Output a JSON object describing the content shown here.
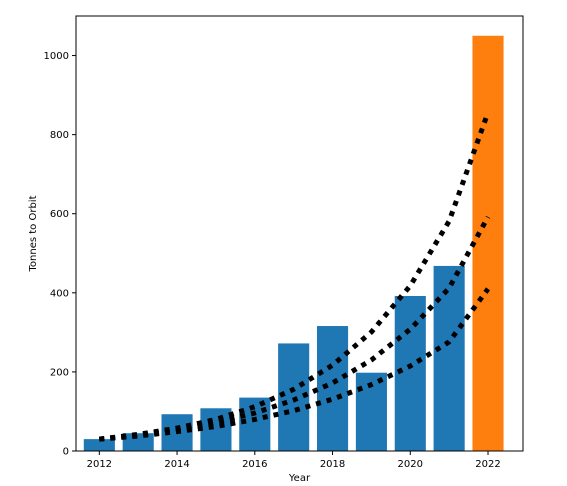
{
  "chart_data": {
    "type": "bar",
    "xlabel": "Year",
    "ylabel": "Tonnes to Orbit",
    "categories": [
      2012,
      2013,
      2014,
      2015,
      2016,
      2017,
      2018,
      2019,
      2020,
      2021,
      2022
    ],
    "values": [
      30,
      45,
      93,
      108,
      135,
      272,
      316,
      198,
      392,
      468,
      1050
    ],
    "bar_colors": [
      "#1f77b4",
      "#1f77b4",
      "#1f77b4",
      "#1f77b4",
      "#1f77b4",
      "#1f77b4",
      "#1f77b4",
      "#1f77b4",
      "#1f77b4",
      "#1f77b4",
      "#ff7f0e"
    ],
    "xlim": [
      2011.4,
      2022.9
    ],
    "ylim": [
      0,
      1100
    ],
    "x_ticks": [
      2012,
      2014,
      2016,
      2018,
      2020,
      2022
    ],
    "y_ticks": [
      0,
      200,
      400,
      600,
      800,
      1000
    ],
    "trend_lines": [
      {
        "style": "dotted",
        "color": "#000000",
        "x": [
          2012,
          2013,
          2014,
          2015,
          2016,
          2017,
          2018,
          2019,
          2020,
          2021,
          2022
        ],
        "y": [
          30,
          42,
          58,
          80,
          112,
          156,
          217,
          301,
          418,
          581,
          856
        ]
      },
      {
        "style": "dotted",
        "color": "#000000",
        "x": [
          2012,
          2013,
          2014,
          2015,
          2016,
          2017,
          2018,
          2019,
          2020,
          2021,
          2022
        ],
        "y": [
          30,
          40,
          54,
          72,
          96,
          129,
          172,
          230,
          308,
          412,
          592
        ]
      },
      {
        "style": "dotted",
        "color": "#000000",
        "x": [
          2012,
          2013,
          2014,
          2015,
          2016,
          2017,
          2018,
          2019,
          2020,
          2021,
          2022
        ],
        "y": [
          30,
          38,
          49,
          62,
          80,
          102,
          131,
          168,
          215,
          276,
          410
        ]
      }
    ],
    "grid": false,
    "legend": "none"
  }
}
